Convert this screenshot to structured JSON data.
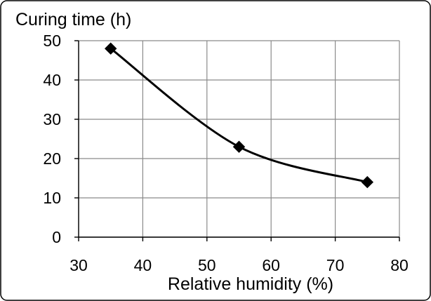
{
  "chart_data": {
    "type": "line",
    "xlabel": "Relative humidity (%)",
    "ylabel": "Curing time (h)",
    "xlim": [
      30,
      80
    ],
    "ylim": [
      0,
      50
    ],
    "x_ticks": [
      30,
      40,
      50,
      60,
      70,
      80
    ],
    "y_ticks": [
      0,
      10,
      20,
      30,
      40,
      50
    ],
    "grid": true,
    "legend": "none",
    "smooth": true,
    "marker": "diamond",
    "series": [
      {
        "x": [
          35,
          55,
          75
        ],
        "y": [
          48,
          23,
          14
        ]
      }
    ],
    "colors": {
      "line": "#000000",
      "marker": "#000000",
      "grid": "#8a8a8a",
      "axis": "#000000",
      "frame": "#000000"
    }
  }
}
